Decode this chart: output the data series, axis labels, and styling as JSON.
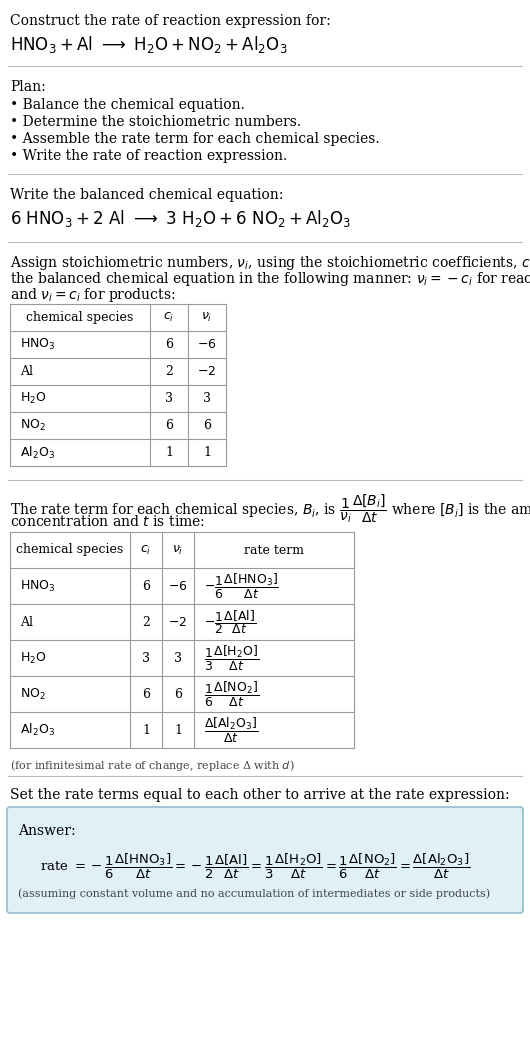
{
  "title_line1": "Construct the rate of reaction expression for:",
  "plan_header": "Plan:",
  "plan_items": [
    "• Balance the chemical equation.",
    "• Determine the stoichiometric numbers.",
    "• Assemble the rate term for each chemical species.",
    "• Write the rate of reaction expression."
  ],
  "balanced_header": "Write the balanced chemical equation:",
  "section3_line1": "Assign stoichiometric numbers, $\\nu_i$, using the stoichiometric coefficients, $c_i$, from",
  "section3_line2": "the balanced chemical equation in the following manner: $\\nu_i = -c_i$ for reactants",
  "section3_line3": "and $\\nu_i = c_i$ for products:",
  "table1_species": [
    "$\\mathrm{HNO_3}$",
    "Al",
    "$\\mathrm{H_2O}$",
    "$\\mathrm{NO_2}$",
    "$\\mathrm{Al_2O_3}$"
  ],
  "table1_ci": [
    "6",
    "2",
    "3",
    "6",
    "1"
  ],
  "table1_nu": [
    "$-6$",
    "$-2$",
    "3",
    "6",
    "1"
  ],
  "rate_line1": "The rate term for each chemical species, $B_i$, is $\\dfrac{1}{\\nu_i}\\dfrac{\\Delta[B_i]}{\\Delta t}$ where $[B_i]$ is the amount",
  "rate_line2": "concentration and $t$ is time:",
  "table2_species": [
    "$\\mathrm{HNO_3}$",
    "Al",
    "$\\mathrm{H_2O}$",
    "$\\mathrm{NO_2}$",
    "$\\mathrm{Al_2O_3}$"
  ],
  "table2_ci": [
    "6",
    "2",
    "3",
    "6",
    "1"
  ],
  "table2_nu": [
    "$-6$",
    "$-2$",
    "3",
    "6",
    "1"
  ],
  "table2_rates": [
    "$-\\dfrac{1}{6}\\dfrac{\\Delta[\\mathrm{HNO_3}]}{\\Delta t}$",
    "$-\\dfrac{1}{2}\\dfrac{\\Delta[\\mathrm{Al}]}{\\Delta t}$",
    "$\\dfrac{1}{3}\\dfrac{\\Delta[\\mathrm{H_2O}]}{\\Delta t}$",
    "$\\dfrac{1}{6}\\dfrac{\\Delta[\\mathrm{NO_2}]}{\\Delta t}$",
    "$\\dfrac{\\Delta[\\mathrm{Al_2O_3}]}{\\Delta t}$"
  ],
  "infinitesimal_note": "(for infinitesimal rate of change, replace Δ with $d$)",
  "section5_header": "Set the rate terms equal to each other to arrive at the rate expression:",
  "answer_label": "Answer:",
  "answer_rate_eq": "rate $= -\\dfrac{1}{6}\\dfrac{\\Delta[\\mathrm{HNO_3}]}{\\Delta t} = -\\dfrac{1}{2}\\dfrac{\\Delta[\\mathrm{Al}]}{\\Delta t} = \\dfrac{1}{3}\\dfrac{\\Delta[\\mathrm{H_2O}]}{\\Delta t} = \\dfrac{1}{6}\\dfrac{\\Delta[\\mathrm{NO_2}]}{\\Delta t} = \\dfrac{\\Delta[\\mathrm{Al_2O_3}]}{\\Delta t}$",
  "answer_note": "(assuming constant volume and no accumulation of intermediates or side products)",
  "answer_box_color": "#dff0f7",
  "answer_border_color": "#90bdd0",
  "bg_color": "#ffffff",
  "text_color": "#000000",
  "table_border_color": "#999999",
  "divider_color": "#bbbbbb"
}
